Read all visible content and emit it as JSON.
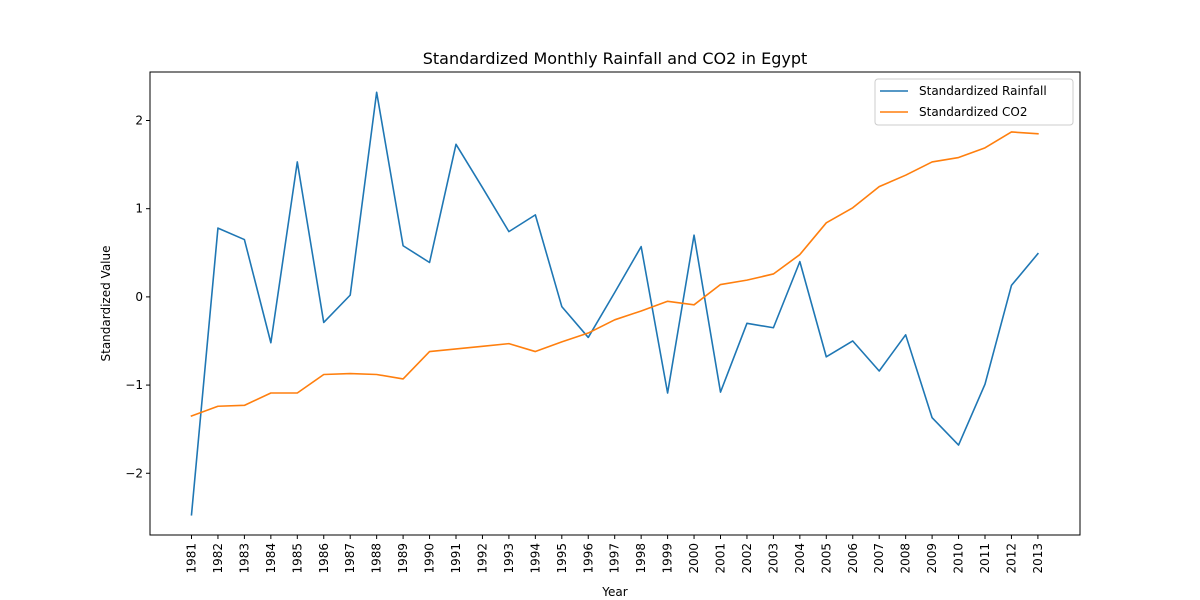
{
  "chart_data": {
    "type": "line",
    "title": "Standardized Monthly Rainfall and CO2 in Egypt",
    "xlabel": "Year",
    "ylabel": "Standardized Value",
    "x": [
      "1981",
      "1982",
      "1983",
      "1984",
      "1985",
      "1986",
      "1987",
      "1988",
      "1989",
      "1990",
      "1991",
      "1992",
      "1993",
      "1994",
      "1995",
      "1996",
      "1997",
      "1998",
      "1999",
      "2000",
      "2001",
      "2002",
      "2003",
      "2004",
      "2005",
      "2006",
      "2007",
      "2008",
      "2009",
      "2010",
      "2011",
      "2012",
      "2013"
    ],
    "yticks": [
      -2,
      -1,
      0,
      1,
      2
    ],
    "ytick_labels": [
      "−2",
      "−1",
      "0",
      "1",
      "2"
    ],
    "ylim": [
      -2.7,
      2.55
    ],
    "grid": false,
    "legend_position": "top-right",
    "series": [
      {
        "name": "Standardized Rainfall",
        "color": "#1f77b4",
        "values": [
          -2.47,
          0.78,
          0.65,
          -0.52,
          1.53,
          -0.29,
          0.02,
          2.32,
          0.58,
          0.39,
          1.73,
          1.24,
          0.74,
          0.93,
          -0.11,
          -0.46,
          0.05,
          0.57,
          -1.09,
          0.7,
          -1.08,
          -0.3,
          -0.35,
          0.4,
          -0.68,
          -0.5,
          -0.84,
          -0.43,
          -1.37,
          -1.68,
          -0.99,
          0.13,
          0.49
        ]
      },
      {
        "name": "Standardized CO2",
        "color": "#ff7f0e",
        "values": [
          -1.35,
          -1.24,
          -1.23,
          -1.09,
          -1.09,
          -0.88,
          -0.87,
          -0.88,
          -0.93,
          -0.62,
          -0.59,
          -0.56,
          -0.53,
          -0.62,
          -0.51,
          -0.41,
          -0.26,
          -0.16,
          -0.05,
          -0.09,
          0.14,
          0.19,
          0.26,
          0.48,
          0.84,
          1.01,
          1.25,
          1.38,
          1.53,
          1.58,
          1.69,
          1.87,
          1.85
        ]
      }
    ]
  }
}
